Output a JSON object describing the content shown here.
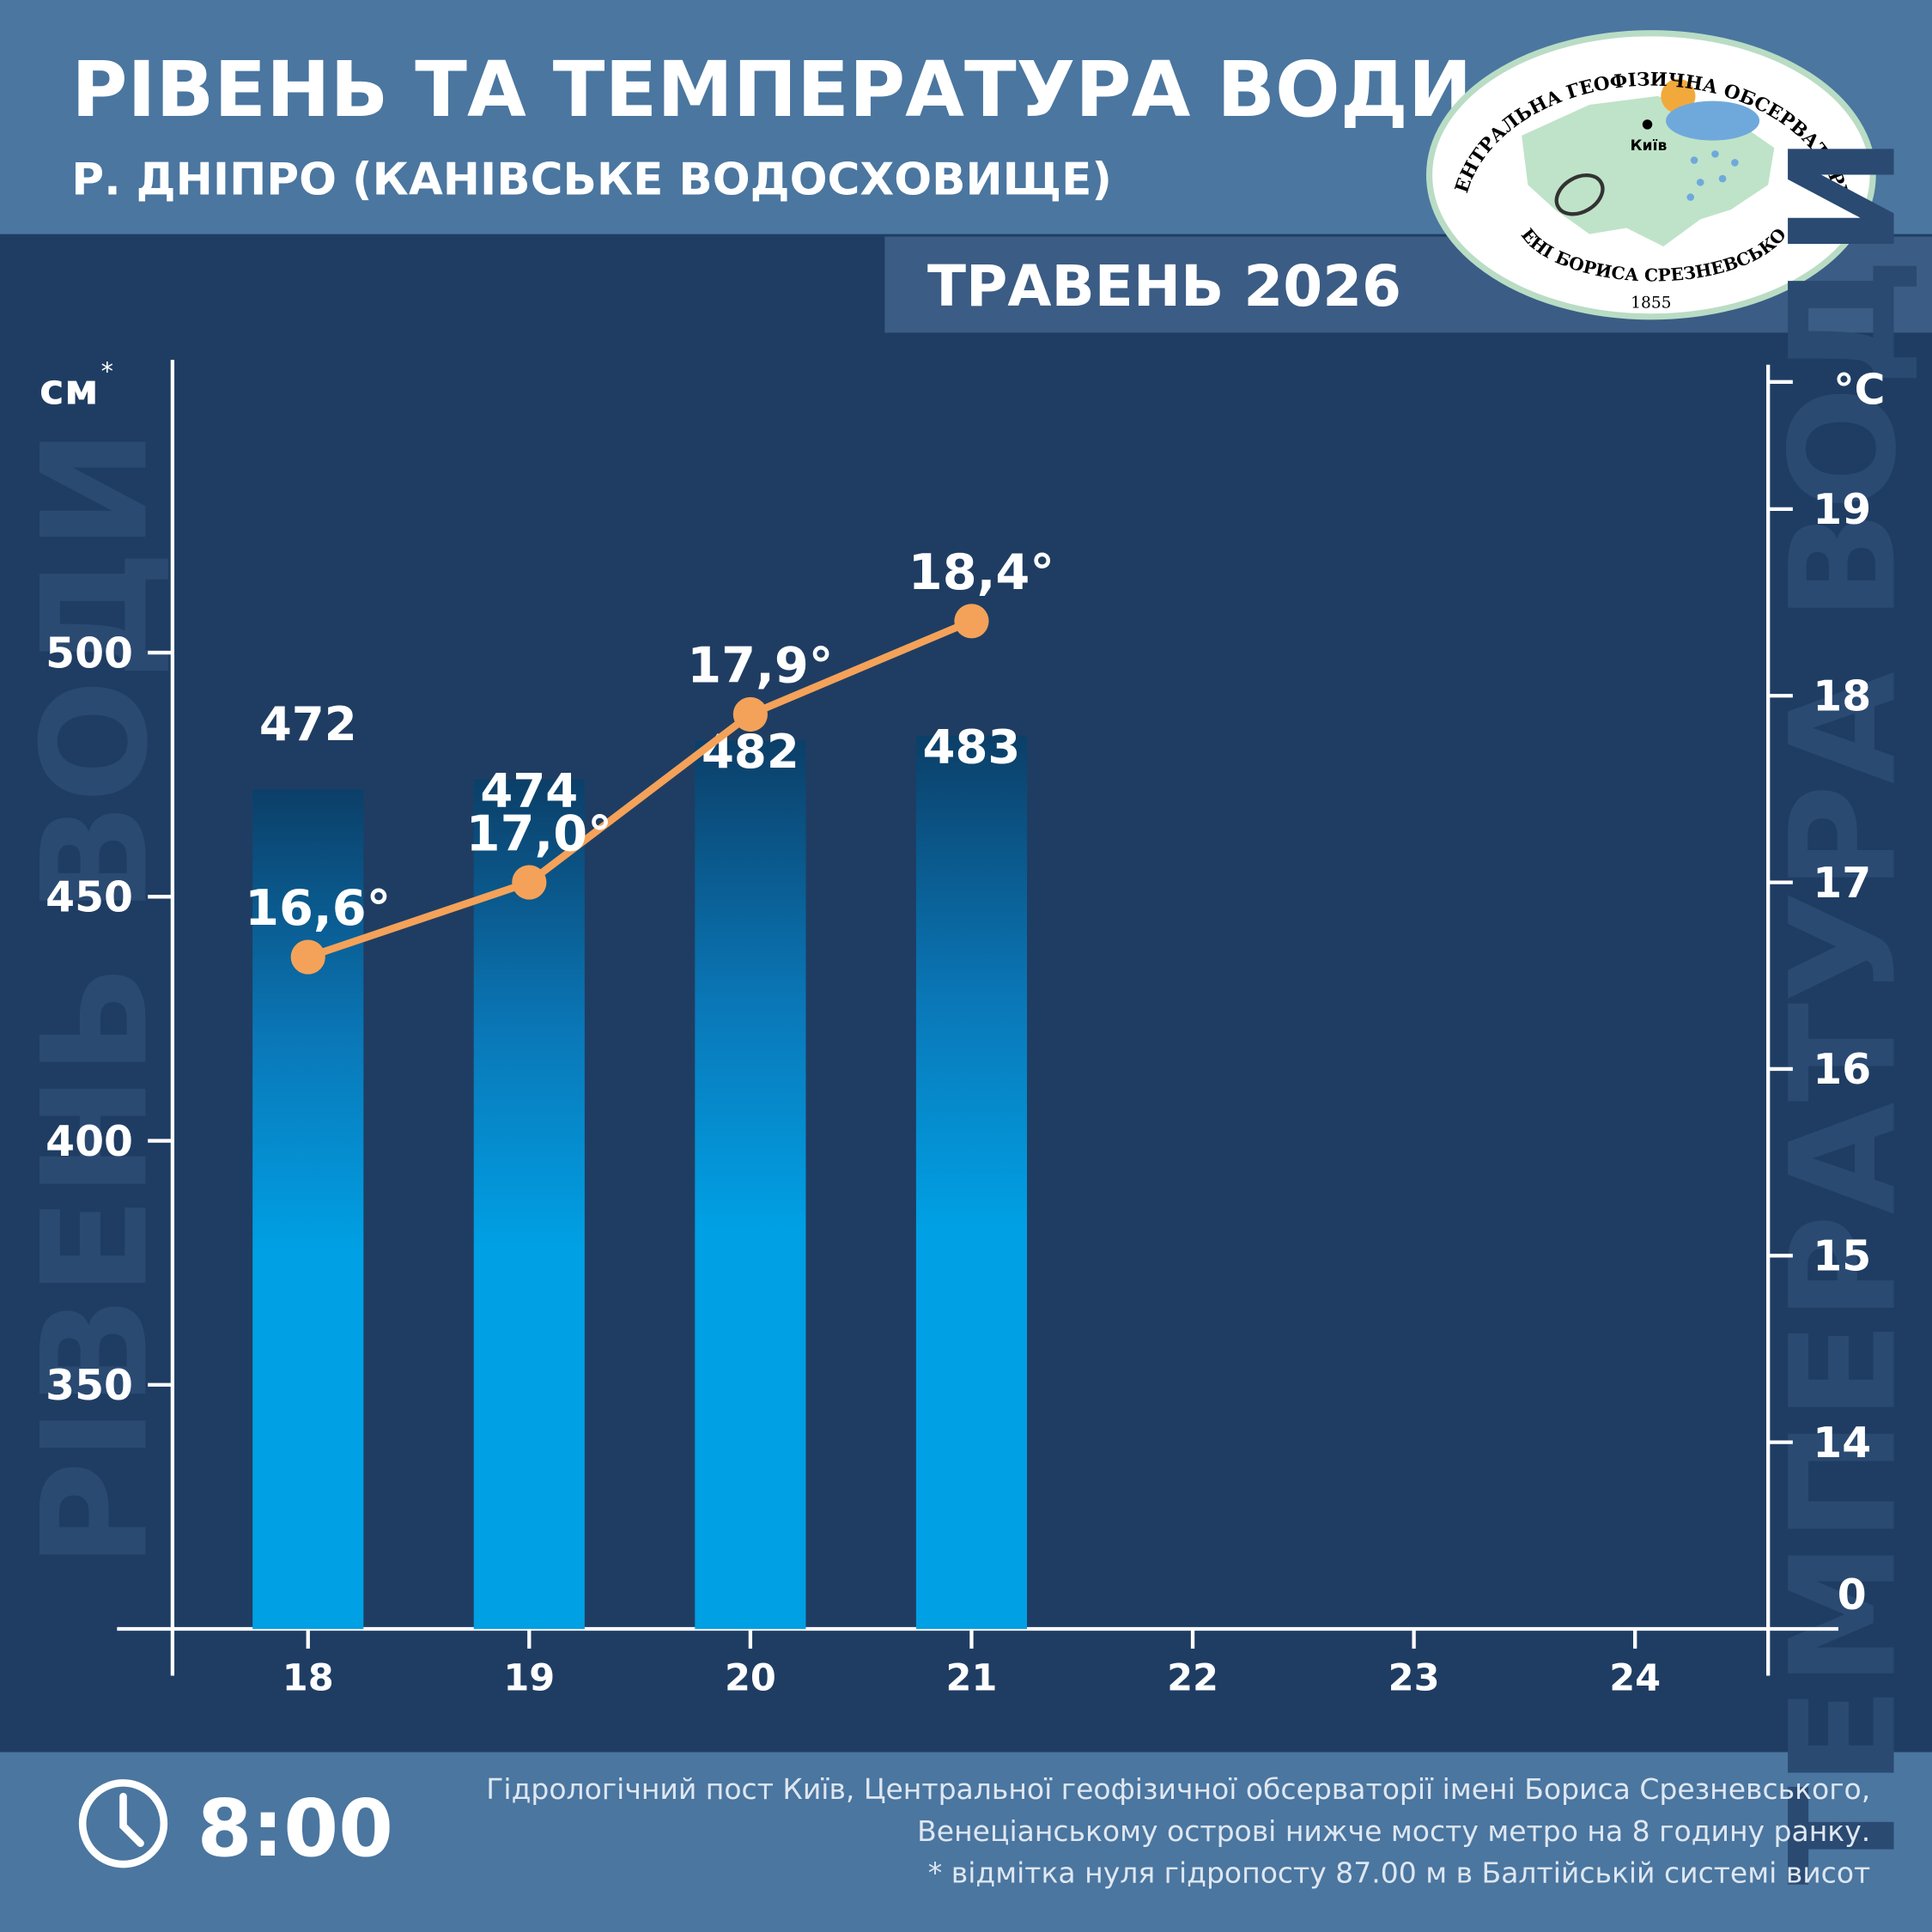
{
  "chart_data": {
    "type": "bar-line",
    "title": "РІВЕНЬ ТА ТЕМПЕРАТУРА ВОДИ",
    "subtitle": "Р. ДНІПРО (КАНІВСЬКЕ ВОДОСХОВИЩЕ)",
    "period": "ТРАВЕНЬ 2026",
    "y_axis_label": "см",
    "y_axis_note_mark": "*",
    "y2_axis_label": "°C",
    "y_axis_title": "РІВЕНЬ ВОДИ",
    "y2_axis_title": "ТЕМПЕРАТУРА ВОДИ",
    "y2_origin_label": "0",
    "categories": [
      "18",
      "19",
      "20",
      "21",
      "22",
      "23",
      "24"
    ],
    "series": [
      {
        "name": "Рівень води",
        "color": "#00a0e4",
        "values": [
          472,
          474,
          482,
          483,
          null,
          null,
          null
        ]
      },
      {
        "name": "Температура води",
        "color": "#f4a259",
        "axis": "y2",
        "values": [
          16.6,
          17.0,
          17.9,
          18.4,
          null,
          null,
          null
        ],
        "value_labels": [
          "16,6°",
          "17,0°",
          "17,9°",
          "18,4°",
          null,
          null,
          null
        ]
      }
    ],
    "ylim": [
      300,
      560
    ],
    "yticks": [
      350,
      400,
      450,
      500
    ],
    "y2lim": [
      13,
      19.8
    ],
    "y2ticks": [
      14,
      15,
      16,
      17,
      18,
      19
    ],
    "time": "8:00",
    "footnote": [
      "Гідрологічний пост Київ, Центральної геофізичної обсерваторії імені Бориса Срезневського,",
      "Венеціанському острові нижче мосту метро  на 8 годину ранку.",
      "* відмітка нуля гідропосту 87.00 м в Балтійській системі висот"
    ],
    "logo": {
      "top": "ЦЕНТРАЛЬНА ГЕОФІЗИЧНА ОБСЕРВАТОРІЯ",
      "bottom": "ІМЕНІ БОРИСА СРЕЗНЕВСЬКОГО",
      "year": "1855",
      "city": "Київ"
    }
  }
}
